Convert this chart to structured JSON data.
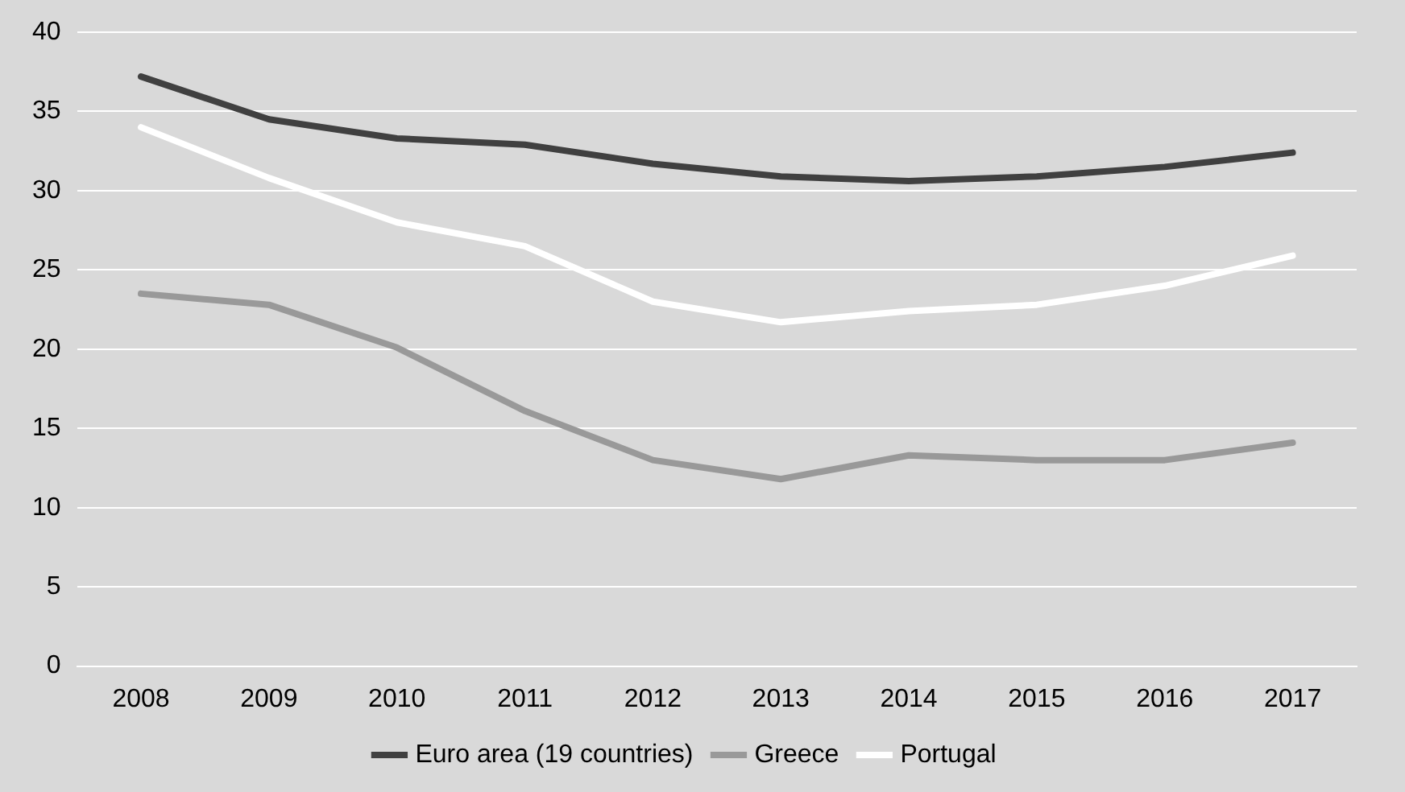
{
  "chart_data": {
    "type": "line",
    "categories": [
      "2008",
      "2009",
      "2010",
      "2011",
      "2012",
      "2013",
      "2014",
      "2015",
      "2016",
      "2017"
    ],
    "series": [
      {
        "name": "Euro area (19 countries)",
        "color": "#404040",
        "values": [
          37.2,
          34.5,
          33.3,
          32.9,
          31.7,
          30.9,
          30.6,
          30.9,
          31.5,
          32.4
        ]
      },
      {
        "name": "Greece",
        "color": "#999999",
        "values": [
          23.5,
          22.8,
          20.1,
          16.1,
          13.0,
          11.8,
          13.3,
          13.0,
          13.0,
          14.1
        ]
      },
      {
        "name": "Portugal",
        "color": "#ffffff",
        "values": [
          34.0,
          30.8,
          28.0,
          26.5,
          23.0,
          21.7,
          22.4,
          22.8,
          24.0,
          25.9
        ]
      }
    ],
    "ylim": [
      0,
      40
    ],
    "yticks": [
      0,
      5,
      10,
      15,
      20,
      25,
      30,
      35,
      40
    ],
    "grid": "y",
    "legend": "bottom",
    "marker": "none",
    "line_style": "solid"
  }
}
